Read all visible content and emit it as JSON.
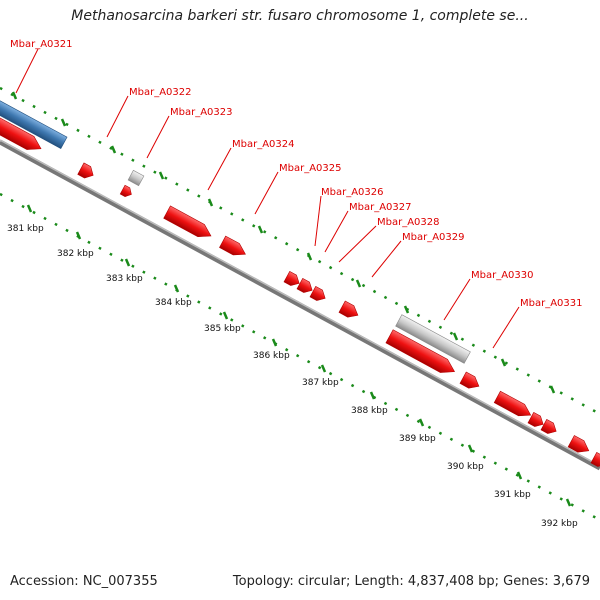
{
  "title": "Methanosarcina barkeri str. fusaro chromosome 1, complete se...",
  "accession": "Accession: NC_007355",
  "topology": "Topology: circular; Length: 4,837,408 bp; Genes: 3,679",
  "colors": {
    "gene_forward": "#ee1111",
    "gene_other": "#c8c8c8",
    "gene_blue": "#3f78b0",
    "backbone": "#808080",
    "tick": "#1a8a1a",
    "label": "#dd0000"
  },
  "genes": [
    {
      "label": "Mbar_A0321"
    },
    {
      "label": "Mbar_A0322"
    },
    {
      "label": "Mbar_A0323"
    },
    {
      "label": "Mbar_A0324"
    },
    {
      "label": "Mbar_A0325"
    },
    {
      "label": "Mbar_A0326"
    },
    {
      "label": "Mbar_A0327"
    },
    {
      "label": "Mbar_A0328"
    },
    {
      "label": "Mbar_A0329"
    },
    {
      "label": "Mbar_A0330"
    },
    {
      "label": "Mbar_A0331"
    }
  ],
  "scale_labels": [
    "381 kbp",
    "382 kbp",
    "383 kbp",
    "384 kbp",
    "385 kbp",
    "386 kbp",
    "387 kbp",
    "388 kbp",
    "389 kbp",
    "390 kbp",
    "391 kbp",
    "392 kbp"
  ]
}
